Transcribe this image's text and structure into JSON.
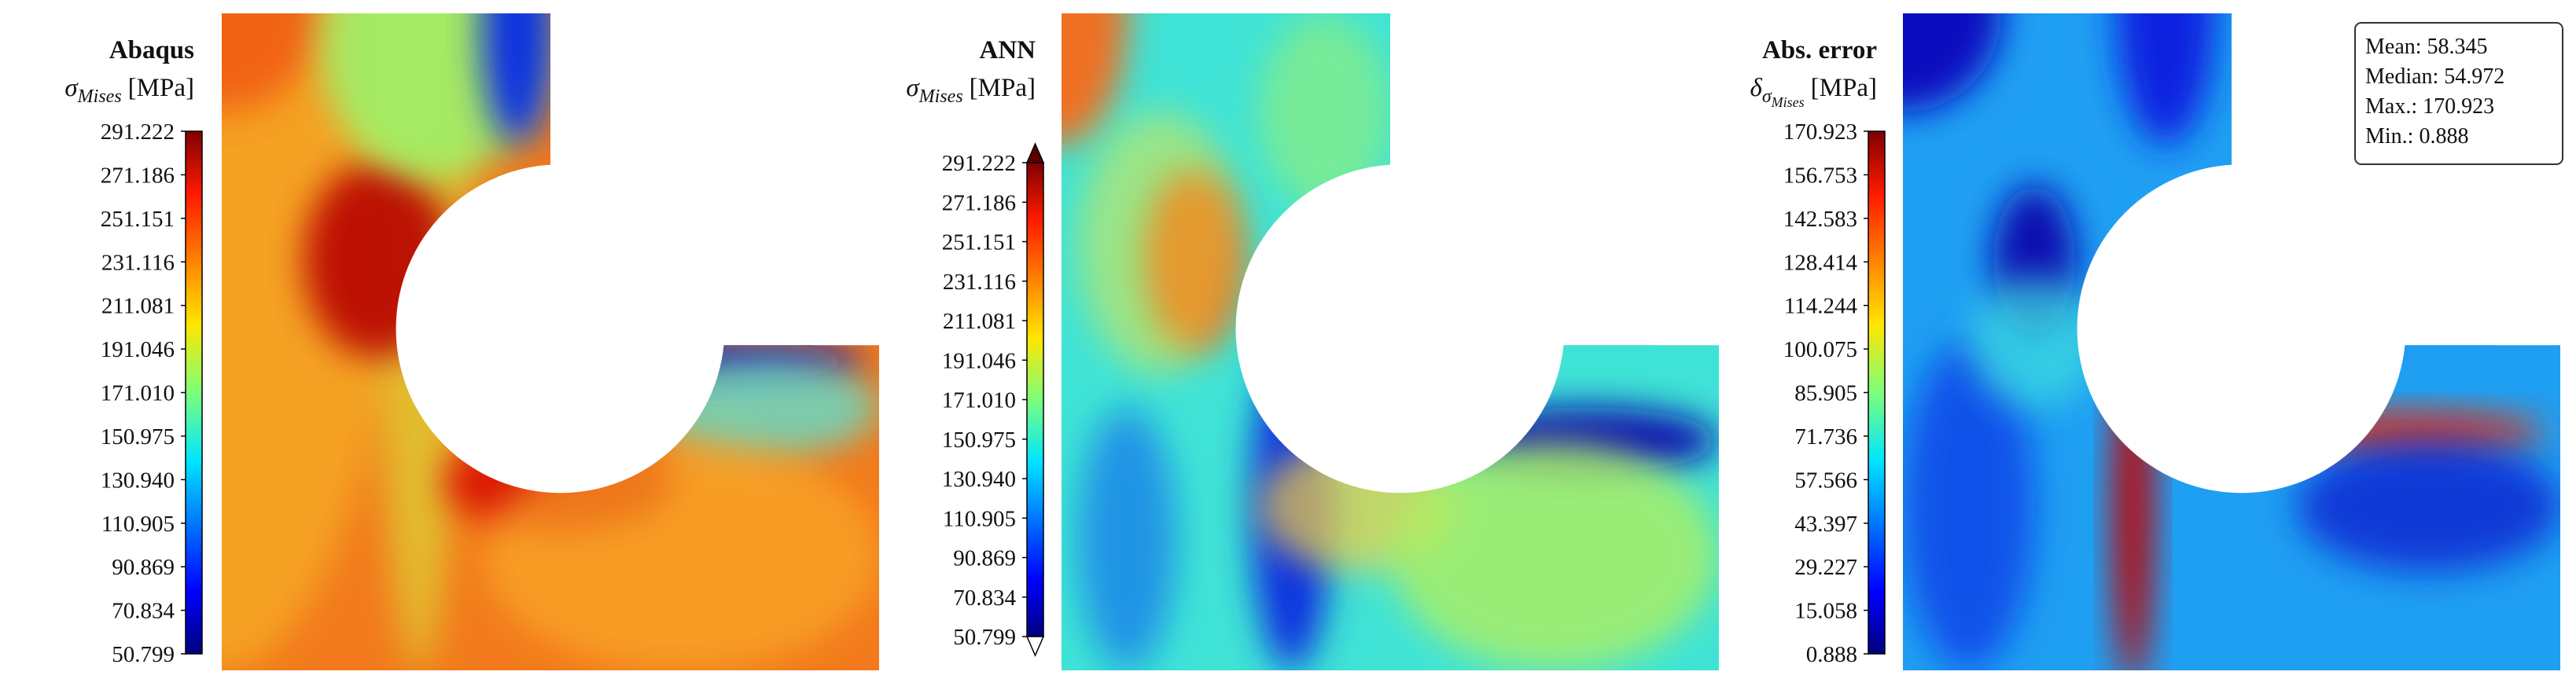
{
  "panels": [
    {
      "title": "Abaqus",
      "symbol": "σ",
      "subscript": "Mises",
      "unit": "[MPa]",
      "ticks": [
        "291.222",
        "271.186",
        "251.151",
        "231.116",
        "211.081",
        "191.046",
        "171.010",
        "150.975",
        "130.940",
        "110.905",
        "90.869",
        "70.834",
        "50.799"
      ]
    },
    {
      "title": "ANN",
      "symbol": "σ",
      "subscript": "Mises",
      "unit": "[MPa]",
      "ticks": [
        "291.222",
        "271.186",
        "251.151",
        "231.116",
        "211.081",
        "191.046",
        "171.010",
        "150.975",
        "130.940",
        "110.905",
        "90.869",
        "70.834",
        "50.799"
      ]
    },
    {
      "title": "Abs. error",
      "symbol": "δ",
      "subscript": "σ",
      "subsubscript": "Mises",
      "unit": "[MPa]",
      "ticks": [
        "170.923",
        "156.753",
        "142.583",
        "128.414",
        "114.244",
        "100.075",
        "85.905",
        "71.736",
        "57.566",
        "43.397",
        "29.227",
        "15.058",
        "0.888"
      ],
      "stats": [
        "Mean: 58.345",
        "Median: 54.972",
        "Max.: 170.923",
        "Min.: 0.888"
      ]
    }
  ]
}
